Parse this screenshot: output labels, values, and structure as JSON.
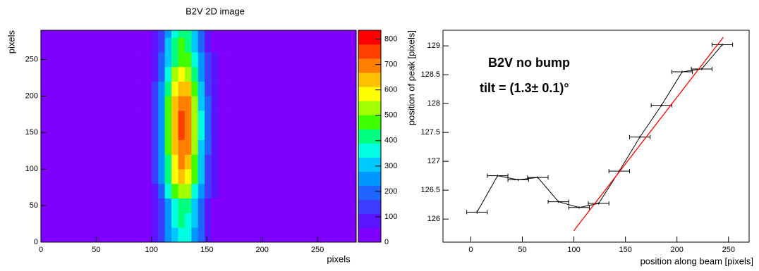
{
  "chart_data": [
    {
      "type": "heatmap",
      "title": "B2V 2D image",
      "x_label": "pixels",
      "y_label": "pixels",
      "xbins": [
        0,
        50,
        90,
        100,
        106,
        112,
        118,
        124,
        130,
        136,
        142,
        148,
        154,
        160,
        170,
        200,
        285
      ],
      "ybins": [
        0,
        20,
        40,
        60,
        80,
        100,
        120,
        140,
        160,
        180,
        200,
        220,
        240,
        260,
        280,
        290
      ],
      "z": [
        [
          8,
          12,
          34,
          76,
          139,
          234,
          325,
          370,
          346,
          265,
          171,
          94,
          48,
          22,
          12,
          8
        ],
        [
          8,
          12,
          35,
          81,
          149,
          252,
          351,
          400,
          373,
          286,
          183,
          100,
          50,
          23,
          12,
          8
        ],
        [
          8,
          12,
          37,
          87,
          163,
          276,
          385,
          440,
          411,
          314,
          201,
          108,
          54,
          23,
          12,
          8
        ],
        [
          8,
          12,
          41,
          103,
          197,
          337,
          472,
          540,
          504,
          384,
          244,
          129,
          62,
          25,
          12,
          8
        ],
        [
          8,
          12,
          45,
          119,
          231,
          398,
          559,
          640,
          597,
          454,
          287,
          150,
          70,
          27,
          12,
          8
        ],
        [
          8,
          12,
          47,
          129,
          251,
          435,
          612,
          700,
          652,
          496,
          312,
          163,
          74,
          29,
          12,
          8
        ],
        [
          8,
          12,
          48,
          132,
          258,
          447,
          629,
          720,
          671,
          510,
          321,
          167,
          76,
          29,
          12,
          8
        ],
        [
          8,
          12,
          50,
          138,
          272,
          471,
          664,
          760,
          708,
          538,
          338,
          175,
          79,
          30,
          12,
          8
        ],
        [
          8,
          12,
          50,
          138,
          272,
          471,
          664,
          760,
          708,
          538,
          338,
          175,
          79,
          30,
          12,
          8
        ],
        [
          8,
          12,
          48,
          132,
          258,
          447,
          629,
          720,
          671,
          510,
          321,
          167,
          76,
          29,
          12,
          8
        ],
        [
          8,
          12,
          46,
          122,
          238,
          410,
          577,
          660,
          615,
          468,
          295,
          154,
          71,
          28,
          12,
          8
        ],
        [
          8,
          12,
          42,
          110,
          210,
          362,
          507,
          580,
          541,
          412,
          261,
          138,
          65,
          26,
          12,
          8
        ],
        [
          8,
          12,
          39,
          97,
          183,
          313,
          438,
          500,
          466,
          356,
          226,
          121,
          58,
          25,
          12,
          8
        ],
        [
          8,
          12,
          37,
          89,
          166,
          282,
          394,
          450,
          420,
          321,
          205,
          110,
          54,
          24,
          12,
          8
        ],
        [
          8,
          12,
          36,
          84,
          156,
          264,
          368,
          420,
          392,
          300,
          192,
          104,
          52,
          23,
          12,
          8
        ]
      ],
      "xlim": [
        0,
        285
      ],
      "ylim": [
        0,
        290
      ],
      "zlim": [
        0,
        835
      ],
      "xticks": [
        0,
        50,
        100,
        150,
        200,
        250
      ],
      "yticks": [
        0,
        50,
        100,
        150,
        200,
        250
      ],
      "zticks": [
        0,
        100,
        200,
        300,
        400,
        500,
        600,
        700,
        800
      ],
      "colormap": [
        "#8000ff",
        "#5a14ff",
        "#3c3cff",
        "#1e64ff",
        "#0096ff",
        "#00c8ff",
        "#00ffe0",
        "#00ff80",
        "#40ff00",
        "#a0ff00",
        "#ffff00",
        "#ffc000",
        "#ff8000",
        "#ff4000",
        "#ff0000"
      ]
    },
    {
      "type": "line",
      "x_label": "position along beam [pixels]",
      "y_label": "position of peak [pixels]",
      "annotations": [
        "B2V no bump",
        "tilt = (1.3± 0.1)°"
      ],
      "x": [
        6,
        26,
        46,
        65,
        85,
        105,
        124,
        144,
        164,
        185,
        205,
        224,
        244
      ],
      "series": [
        {
          "color": "#000000",
          "values": [
            126.12,
            126.75,
            126.68,
            126.72,
            126.3,
            126.2,
            126.27,
            126.83,
            127.42,
            127.97,
            128.55,
            128.6,
            129.02
          ],
          "xerr": [
            10,
            10,
            10,
            10,
            10,
            10,
            10,
            10,
            10,
            10,
            10,
            10,
            10
          ],
          "yerr": [
            0.03,
            0.02,
            0.02,
            0.02,
            0.02,
            0.02,
            0.02,
            0.02,
            0.02,
            0.02,
            0.02,
            0.02,
            0.02
          ]
        }
      ],
      "fit": {
        "color": "#ff0000",
        "x": [
          100,
          245
        ],
        "values": [
          125.8,
          129.15
        ]
      },
      "xlim": [
        -27,
        270
      ],
      "ylim": [
        125.6,
        129.27
      ],
      "xticks": [
        0,
        50,
        100,
        150,
        200,
        250
      ],
      "yticks": [
        126,
        126.5,
        127,
        127.5,
        128,
        128.5,
        129
      ]
    }
  ]
}
